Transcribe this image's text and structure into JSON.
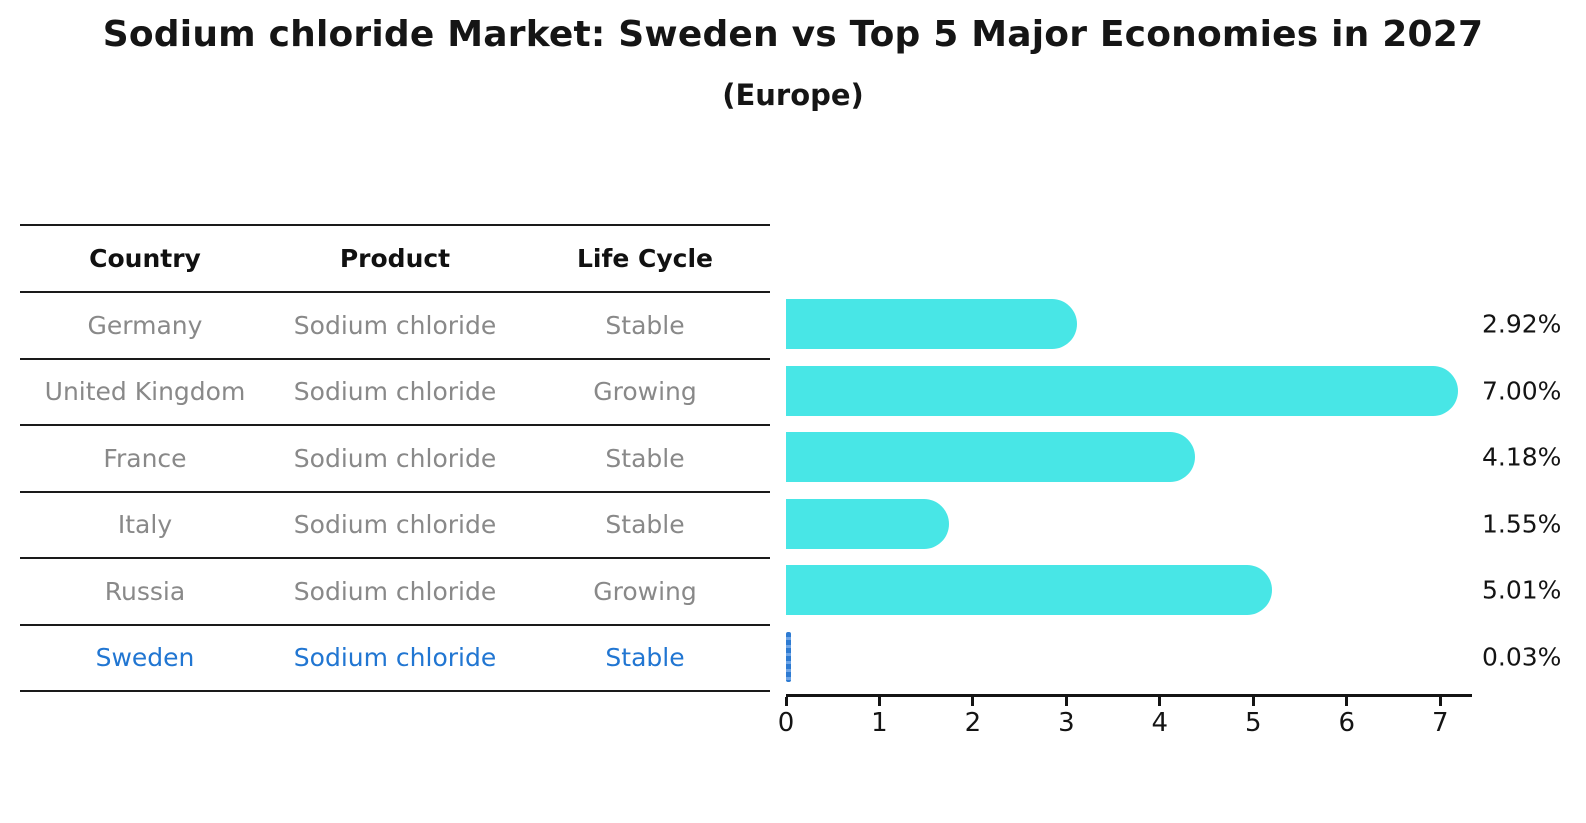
{
  "title": "Sodium chloride Market: Sweden vs Top 5 Major Economies in 2027",
  "subtitle": "(Europe)",
  "table": {
    "headers": [
      "Country",
      "Product",
      "Life Cycle"
    ],
    "rows": [
      {
        "country": "Germany",
        "product": "Sodium chloride",
        "life_cycle": "Stable",
        "highlight": false
      },
      {
        "country": "United Kingdom",
        "product": "Sodium chloride",
        "life_cycle": "Growing",
        "highlight": false
      },
      {
        "country": "France",
        "product": "Sodium chloride",
        "life_cycle": "Stable",
        "highlight": false
      },
      {
        "country": "Italy",
        "product": "Sodium chloride",
        "life_cycle": "Stable",
        "highlight": false
      },
      {
        "country": "Russia",
        "product": "Sodium chloride",
        "life_cycle": "Growing",
        "highlight": false
      },
      {
        "country": "Sweden",
        "product": "Sodium chloride",
        "life_cycle": "Stable",
        "highlight": true
      }
    ]
  },
  "chart_data": {
    "type": "bar",
    "orientation": "horizontal",
    "title": "Sodium chloride Market: Sweden vs Top 5 Major Economies in 2027",
    "subtitle": "(Europe)",
    "categories": [
      "Germany",
      "United Kingdom",
      "France",
      "Italy",
      "Russia",
      "Sweden"
    ],
    "values": [
      2.92,
      7.0,
      4.18,
      1.55,
      5.01,
      0.03
    ],
    "value_labels": [
      "2.92%",
      "7.00%",
      "4.18%",
      "1.55%",
      "5.01%",
      "0.03%"
    ],
    "highlight_index": 5,
    "xlim": [
      0,
      7.34
    ],
    "x_ticks": [
      0,
      1,
      2,
      3,
      4,
      5,
      6,
      7
    ],
    "xlabel": "",
    "ylabel": "",
    "grid": false,
    "legend": false,
    "bar_color": "#48e6e6",
    "highlight_bar_color": "#2e7bd2",
    "highlight_text_color": "#2176d2",
    "row_text_color": "#898989",
    "axis_color": "#141414"
  }
}
